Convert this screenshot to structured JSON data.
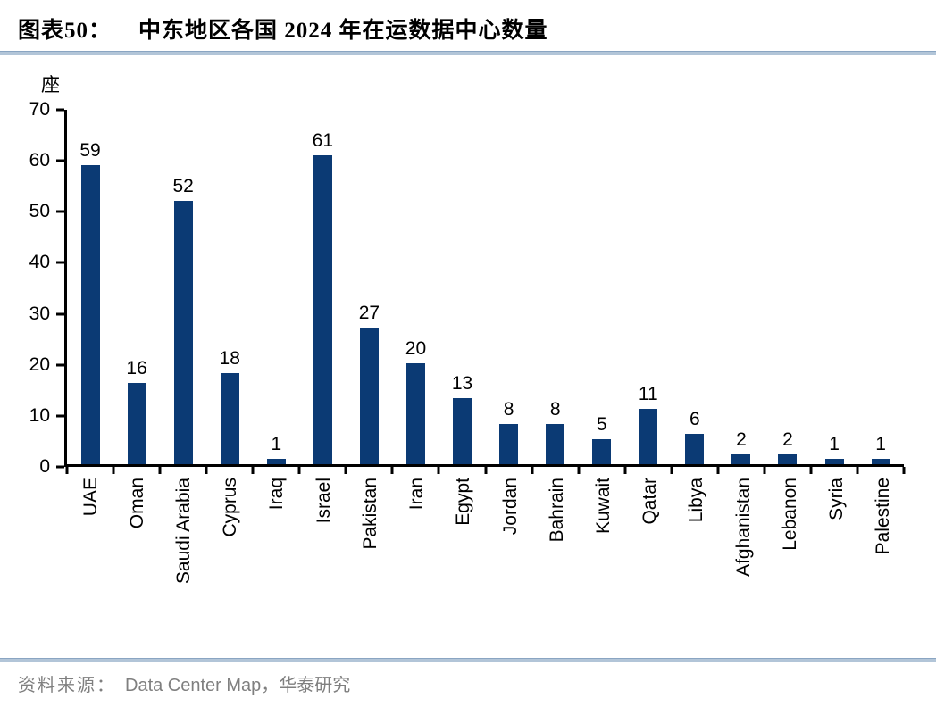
{
  "figure": {
    "label": "图表50：",
    "title": "中东地区各国 2024 年在运数据中心数量",
    "source_prefix": "资料来源：",
    "source_text": "Data Center Map，华泰研究",
    "colors": {
      "bar": "#0b3a74",
      "rule": "#b2c5d8",
      "rule_edge": "#8aa5c2",
      "source_gray": "#7f7f7f"
    }
  },
  "chart_data": {
    "type": "bar",
    "title": "中东地区各国2024年在运数据中心数量",
    "categories": [
      "UAE",
      "Oman",
      "Saudi Arabia",
      "Cyprus",
      "Iraq",
      "Israel",
      "Pakistan",
      "Iran",
      "Egypt",
      "Jordan",
      "Bahrain",
      "Kuwait",
      "Qatar",
      "Libya",
      "Afghanistan",
      "Lebanon",
      "Syria",
      "Palestine"
    ],
    "values": [
      59,
      16,
      52,
      18,
      1,
      61,
      27,
      20,
      13,
      8,
      8,
      5,
      11,
      6,
      2,
      2,
      1,
      1
    ],
    "ylabel": "座",
    "xlabel": "",
    "ylim": [
      0,
      70
    ],
    "yticks": [
      0,
      10,
      20,
      30,
      40,
      50,
      60,
      70
    ],
    "grid": false,
    "legend": false,
    "bar_color": "#0b3a74",
    "value_labels": true
  }
}
